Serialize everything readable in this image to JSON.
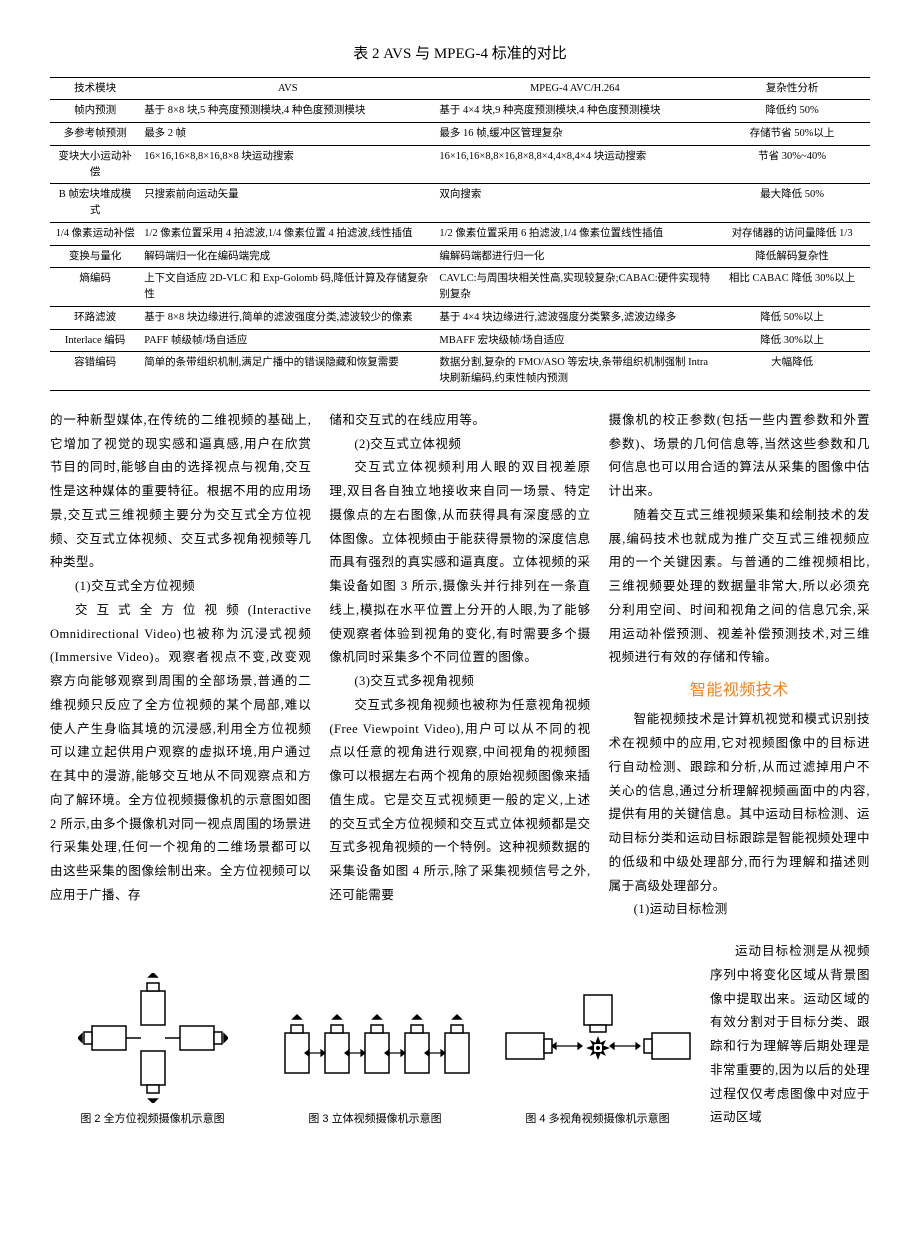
{
  "table": {
    "title": "表 2  AVS 与 MPEG-4 标准的对比",
    "title_fontsize": 15,
    "font_size": 10.5,
    "border_color": "#000000",
    "columns": [
      "技术模块",
      "AVS",
      "MPEG-4 AVC/H.264",
      "复杂性分析"
    ],
    "col_widths_pct": [
      11,
      36,
      34,
      19
    ],
    "rows": [
      [
        "帧内预测",
        "基于 8×8 块,5 种亮度预测模块,4 种色度预测模块",
        "基于 4×4 块,9 种亮度预测模块,4 种色度预测模块",
        "降低约 50%"
      ],
      [
        "多参考帧预测",
        "最多 2 帧",
        "最多 16 帧,缓冲区管理复杂",
        "存储节省 50%以上"
      ],
      [
        "变块大小运动补偿",
        "16×16,16×8,8×16,8×8 块运动搜索",
        "16×16,16×8,8×16,8×8,8×4,4×8,4×4 块运动搜索",
        "节省 30%~40%"
      ],
      [
        "B 帧宏块堆成模式",
        "只搜索前向运动矢量",
        "双向搜索",
        "最大降低 50%"
      ],
      [
        "1/4 像素运动补偿",
        "1/2 像素位置采用 4 拍滤波,1/4 像素位置 4 拍滤波,线性插值",
        "1/2 像素位置采用 6 拍滤波,1/4 像素位置线性插值",
        "对存储器的访问量降低 1/3"
      ],
      [
        "变换与量化",
        "解码端归一化在编码端完成",
        "编解码端都进行归一化",
        "降低解码复杂性"
      ],
      [
        "熵编码",
        "上下文自适应 2D-VLC 和 Exp-Golomb 码,降低计算及存储复杂性",
        "CAVLC:与周围块相关性高,实现较复杂;CABAC:硬件实现特别复杂",
        "相比 CABAC 降低 30%以上"
      ],
      [
        "环路滤波",
        "基于 8×8 块边缘进行,简单的滤波强度分类,滤波较少的像素",
        "基于 4×4 块边缘进行,滤波强度分类繁多,滤波边缘多",
        "降低 50%以上"
      ],
      [
        "Interlace 编码",
        "PAFF 帧级帧/场自适应",
        "MBAFF 宏块级帧/场自适应",
        "降低 30%以上"
      ],
      [
        "容错编码",
        "简单的条带组织机制,满足广播中的错误隐藏和恢复需要",
        "数据分割,复杂的 FMO/ASO 等宏块,条带组织机制强制 Intra 块刷新编码,约束性帧内预测",
        "大幅降低"
      ]
    ]
  },
  "body": {
    "p1": "的一种新型媒体,在传统的二维视频的基础上,它增加了视觉的现实感和逼真感,用户在欣赏节目的同时,能够自由的选择视点与视角,交互性是这种媒体的重要特征。根据不用的应用场景,交互式三维视频主要分为交互式全方位视频、交互式立体视频、交互式多视角视频等几种类型。",
    "h1": "(1)交互式全方位视频",
    "p2": "交互式全方位视频(Interactive Omnidirectional Video)也被称为沉浸式视频(Immersive Video)。观察者视点不变,改变观察方向能够观察到周围的全部场景,普通的二维视频只反应了全方位视频的某个局部,难以使人产生身临其境的沉浸感,利用全方位视频可以建立起供用户观察的虚拟环境,用户通过在其中的漫游,能够交互地从不同观察点和方向了解环境。全方位视频摄像机的示意图如图 2 所示,由多个摄像机对同一视点周围的场景进行采集处理,任何一个视角的二维场景都可以由这些采集的图像绘制出来。全方位视频可以应用于广播、存",
    "p3": "储和交互式的在线应用等。",
    "h2": "(2)交互式立体视频",
    "p4": "交互式立体视频利用人眼的双目视差原理,双目各自独立地接收来自同一场景、特定摄像点的左右图像,从而获得具有深度感的立体图像。立体视频由于能获得景物的深度信息而具有强烈的真实感和逼真度。立体视频的采集设备如图 3 所示,摄像头并行排列在一条直线上,模拟在水平位置上分开的人眼,为了能够使观察者体验到视角的变化,有时需要多个摄像机同时采集多个不同位置的图像。",
    "h3": "(3)交互式多视角视频",
    "p5": "交互式多视角视频也被称为任意视角视频(Free Viewpoint Video),用户可以从不同的视点以任意的视角进行观察,中间视角的视频图像可以根据左右两个视角的原始视频图像来插值生成。它是交互式视频更一般的定义,上述的交互式全方位视频和交互式立体视频都是交互式多视角视频的一个特例。这种视频数据的采集设备如图 4 所示,除了采集视频信号之外,还可能需要",
    "p6": "摄像机的校正参数(包括一些内置参数和外置参数)、场景的几何信息等,当然这些参数和几何信息也可以用合适的算法从采集的图像中估计出来。",
    "p7": "随着交互式三维视频采集和绘制技术的发展,编码技术也就成为推广交互式三维视频应用的一个关键因素。与普通的二维视频相比,三维视频要处理的数据量非常大,所以必须充分利用空间、时间和视角之间的信息冗余,采用运动补偿预测、视差补偿预测技术,对三维视频进行有效的存储和传输。",
    "section": "智能视频技术",
    "p8": "智能视频技术是计算机视觉和模式识别技术在视频中的应用,它对视频图像中的目标进行自动检测、跟踪和分析,从而过滤掉用户不关心的信息,通过分析理解视频画面中的内容,提供有用的关键信息。其中运动目标检测、运动目标分类和运动目标跟踪是智能视频处理中的低级和中级处理部分,而行为理解和描述则属于高级处理部分。",
    "h4": "(1)运动目标检测"
  },
  "figs": {
    "stroke": "#000000",
    "fill": "#ffffff",
    "cap2": "图 2  全方位视频摄像机示意图",
    "cap3": "图 3  立体视频摄像机示意图",
    "cap4": "图 4  多视角视频摄像机示意图",
    "right_text": "运动目标检测是从视频序列中将变化区域从背景图像中提取出来。运动区域的有效分割对于目标分类、跟踪和行为理解等后期处理是非常重要的,因为以后的处理过程仅仅考虑图像中对应于运动区域"
  },
  "colors": {
    "accent": "#f58220",
    "text": "#000000",
    "bg": "#ffffff"
  }
}
